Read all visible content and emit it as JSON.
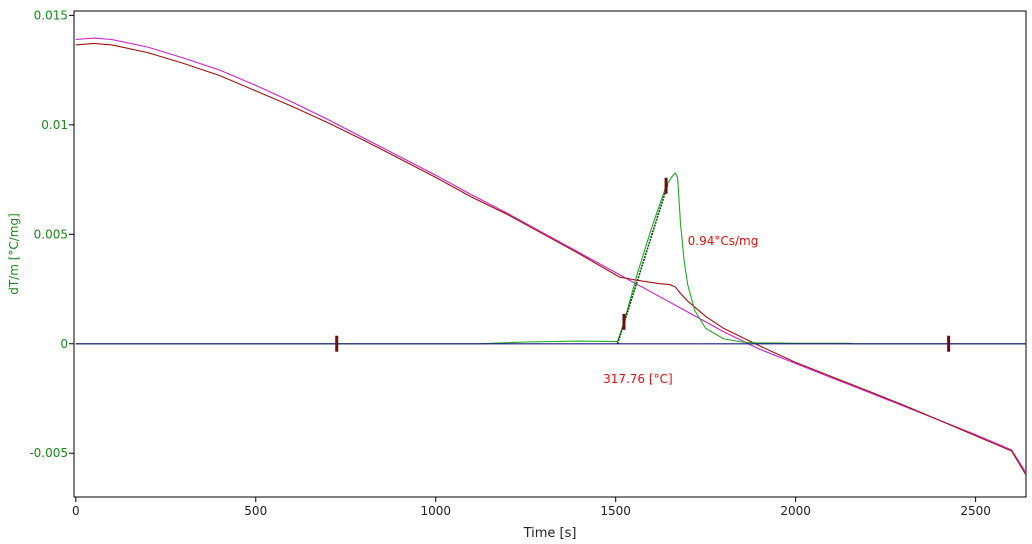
{
  "chart_data": {
    "type": "line",
    "xlabel": "Time [s]",
    "ylabel": "dT/m  [°C/mg]",
    "xlim": [
      -5,
      2640
    ],
    "ylim": [
      -0.007,
      0.0152
    ],
    "grid": false,
    "x_ticks": [
      "0",
      "500",
      "1000",
      "1500",
      "2000",
      "2500"
    ],
    "y_ticks": [
      "0.015",
      "0.01",
      "0.005",
      "0",
      "-0.005"
    ],
    "x_tick_values": [
      0,
      500,
      1000,
      1500,
      2000,
      2500
    ],
    "y_tick_values": [
      0.015,
      0.01,
      0.005,
      0,
      -0.005
    ],
    "colors": {
      "frame": "#000000",
      "y_axis_text": "#1a8a1a",
      "annotation": "#e01010",
      "marker": "#6b0f0f"
    },
    "series": [
      {
        "color": "#d020d0",
        "x": [
          0,
          50,
          100,
          200,
          300,
          400,
          500,
          600,
          700,
          800,
          900,
          1000,
          1100,
          1200,
          1300,
          1400,
          1500,
          1600,
          1700,
          1800,
          1900,
          2000,
          2100,
          2200,
          2300,
          2400,
          2500,
          2600,
          2640
        ],
        "y": [
          0.0139,
          0.01396,
          0.0139,
          0.01355,
          0.01305,
          0.0125,
          0.0118,
          0.01105,
          0.01025,
          0.0094,
          0.00855,
          0.0077,
          0.0068,
          0.00595,
          0.00505,
          0.00415,
          0.00325,
          0.00235,
          0.00145,
          0.00055,
          -0.00025,
          -0.0009,
          -0.00155,
          -0.0022,
          -0.00285,
          -0.0035,
          -0.00415,
          -0.00485,
          -0.0059
        ]
      },
      {
        "color": "#a01010",
        "x": [
          0,
          50,
          100,
          200,
          300,
          400,
          500,
          600,
          700,
          800,
          900,
          1000,
          1100,
          1200,
          1300,
          1400,
          1510,
          1560,
          1620,
          1650,
          1665,
          1680,
          1700,
          1750,
          1800,
          1900,
          2000,
          2100,
          2200,
          2300,
          2400,
          2500,
          2600,
          2640
        ],
        "y": [
          0.01365,
          0.01372,
          0.01365,
          0.0133,
          0.0128,
          0.01225,
          0.01155,
          0.01085,
          0.0101,
          0.0093,
          0.00845,
          0.0076,
          0.0067,
          0.0059,
          0.005,
          0.0041,
          0.00305,
          0.0029,
          0.00275,
          0.0027,
          0.0026,
          0.0023,
          0.00195,
          0.00125,
          0.0007,
          -0.0001,
          -0.00085,
          -0.0015,
          -0.00215,
          -0.0028,
          -0.0035,
          -0.0042,
          -0.0049,
          -0.006
        ]
      },
      {
        "color": "#22aa22",
        "x": [
          0,
          500,
          1000,
          1120,
          1250,
          1400,
          1505,
          1520,
          1560,
          1600,
          1640,
          1655,
          1665,
          1672,
          1680,
          1690,
          1700,
          1720,
          1750,
          1800,
          1850,
          1900,
          1950,
          2000,
          2150,
          2160,
          2300,
          2640
        ],
        "y": [
          0,
          0,
          0,
          0,
          8e-05,
          0.00012,
          0.0001,
          0.0008,
          0.0032,
          0.0053,
          0.0072,
          0.0076,
          0.0078,
          0.0076,
          0.0055,
          0.0038,
          0.0027,
          0.0015,
          0.0007,
          0.00022,
          8e-05,
          3e-05,
          3e-05,
          2e-05,
          2e-05,
          0,
          0,
          0
        ]
      },
      {
        "color": "#1a1a80",
        "x": [
          0,
          2640
        ],
        "y": [
          0,
          0
        ]
      },
      {
        "color": "#0a4a0a",
        "x": [
          1505,
          1645
        ],
        "y": [
          0,
          0.0073
        ]
      }
    ],
    "markers": [
      {
        "x": 725,
        "y": 0
      },
      {
        "x": 1523,
        "y": 0.001
      },
      {
        "x": 1640,
        "y": 0.00722
      },
      {
        "x": 2425,
        "y": 0
      }
    ],
    "annotations": [
      {
        "text": "0.94°Cs/mg",
        "x": 1700,
        "y": 0.0045
      },
      {
        "text": "317.76 [°C]",
        "x": 1465,
        "y": -0.0018
      }
    ]
  }
}
